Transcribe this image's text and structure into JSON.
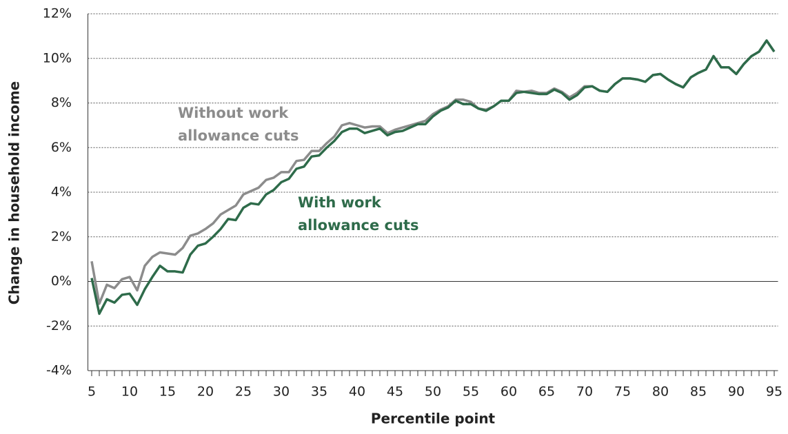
{
  "chart_data": {
    "type": "line",
    "x_label": "Percentile point",
    "y_label": "Change in household income",
    "x": [
      5,
      6,
      7,
      8,
      9,
      10,
      11,
      12,
      13,
      14,
      15,
      16,
      17,
      18,
      19,
      20,
      21,
      22,
      23,
      24,
      25,
      26,
      27,
      28,
      29,
      30,
      31,
      32,
      33,
      34,
      35,
      36,
      37,
      38,
      39,
      40,
      41,
      42,
      43,
      44,
      45,
      46,
      47,
      48,
      49,
      50,
      51,
      52,
      53,
      54,
      55,
      56,
      57,
      58,
      59,
      60,
      61,
      62,
      63,
      64,
      65,
      66,
      67,
      68,
      69,
      70,
      71,
      72,
      73,
      74,
      75,
      76,
      77,
      78,
      79,
      80,
      81,
      82,
      83,
      84,
      85,
      86,
      87,
      88,
      89,
      90,
      91,
      92,
      93,
      94,
      95
    ],
    "series": [
      {
        "name": [
          "Without work",
          "allowance cuts"
        ],
        "color": "#8c8c8c",
        "values": [
          0.9,
          -1.0,
          -0.15,
          -0.3,
          0.1,
          0.2,
          -0.4,
          0.7,
          1.1,
          1.3,
          1.25,
          1.2,
          1.5,
          2.05,
          2.15,
          2.35,
          2.6,
          3.0,
          3.2,
          3.4,
          3.9,
          4.05,
          4.2,
          4.55,
          4.65,
          4.9,
          4.9,
          5.4,
          5.45,
          5.85,
          5.85,
          6.2,
          6.5,
          7.0,
          7.1,
          7.0,
          6.9,
          6.95,
          6.95,
          6.65,
          6.8,
          6.9,
          7.0,
          7.1,
          7.2,
          7.5,
          7.7,
          7.85,
          8.15,
          8.15,
          8.05,
          7.75,
          7.7,
          7.85,
          8.1,
          8.1,
          8.55,
          8.5,
          8.55,
          8.45,
          8.45,
          8.65,
          8.5,
          8.25,
          8.45,
          8.75,
          8.75,
          8.55,
          8.5,
          8.85,
          9.1,
          9.1,
          9.05,
          8.95,
          9.25,
          9.3,
          9.05,
          8.85,
          8.7,
          9.15,
          9.35,
          9.5,
          10.1,
          9.6,
          9.6,
          9.3,
          9.75,
          10.1,
          10.3,
          10.8,
          10.3
        ]
      },
      {
        "name": [
          "With work",
          "allowance cuts"
        ],
        "color": "#2e6b4a",
        "values": [
          0.15,
          -1.45,
          -0.8,
          -0.95,
          -0.6,
          -0.55,
          -1.05,
          -0.35,
          0.2,
          0.7,
          0.45,
          0.45,
          0.4,
          1.2,
          1.6,
          1.7,
          2.0,
          2.35,
          2.8,
          2.75,
          3.3,
          3.5,
          3.45,
          3.9,
          4.1,
          4.45,
          4.6,
          5.05,
          5.15,
          5.6,
          5.65,
          6.0,
          6.3,
          6.7,
          6.85,
          6.85,
          6.65,
          6.75,
          6.85,
          6.55,
          6.7,
          6.75,
          6.9,
          7.05,
          7.05,
          7.4,
          7.65,
          7.8,
          8.1,
          7.95,
          7.95,
          7.75,
          7.65,
          7.85,
          8.1,
          8.1,
          8.45,
          8.5,
          8.45,
          8.4,
          8.4,
          8.6,
          8.45,
          8.15,
          8.35,
          8.7,
          8.75,
          8.55,
          8.5,
          8.85,
          9.1,
          9.1,
          9.05,
          8.95,
          9.25,
          9.3,
          9.05,
          8.85,
          8.7,
          9.15,
          9.35,
          9.5,
          10.1,
          9.6,
          9.6,
          9.3,
          9.75,
          10.1,
          10.3,
          10.8,
          10.3
        ]
      }
    ],
    "xlim": [
      4.5,
      95.5
    ],
    "xticks": [
      5,
      10,
      15,
      20,
      25,
      30,
      35,
      40,
      45,
      50,
      55,
      60,
      65,
      70,
      75,
      80,
      85,
      90,
      95
    ],
    "ylim": [
      -4,
      12
    ],
    "yticks": [
      {
        "value": -4,
        "label": "-4%"
      },
      {
        "value": -2,
        "label": "-2%"
      },
      {
        "value": 0,
        "label": "0%"
      },
      {
        "value": 2,
        "label": "2%"
      },
      {
        "value": 4,
        "label": "4%"
      },
      {
        "value": 6,
        "label": "6%"
      },
      {
        "value": 8,
        "label": "8%"
      },
      {
        "value": 10,
        "label": "10%"
      },
      {
        "value": 12,
        "label": "12%"
      }
    ],
    "grid": true
  }
}
